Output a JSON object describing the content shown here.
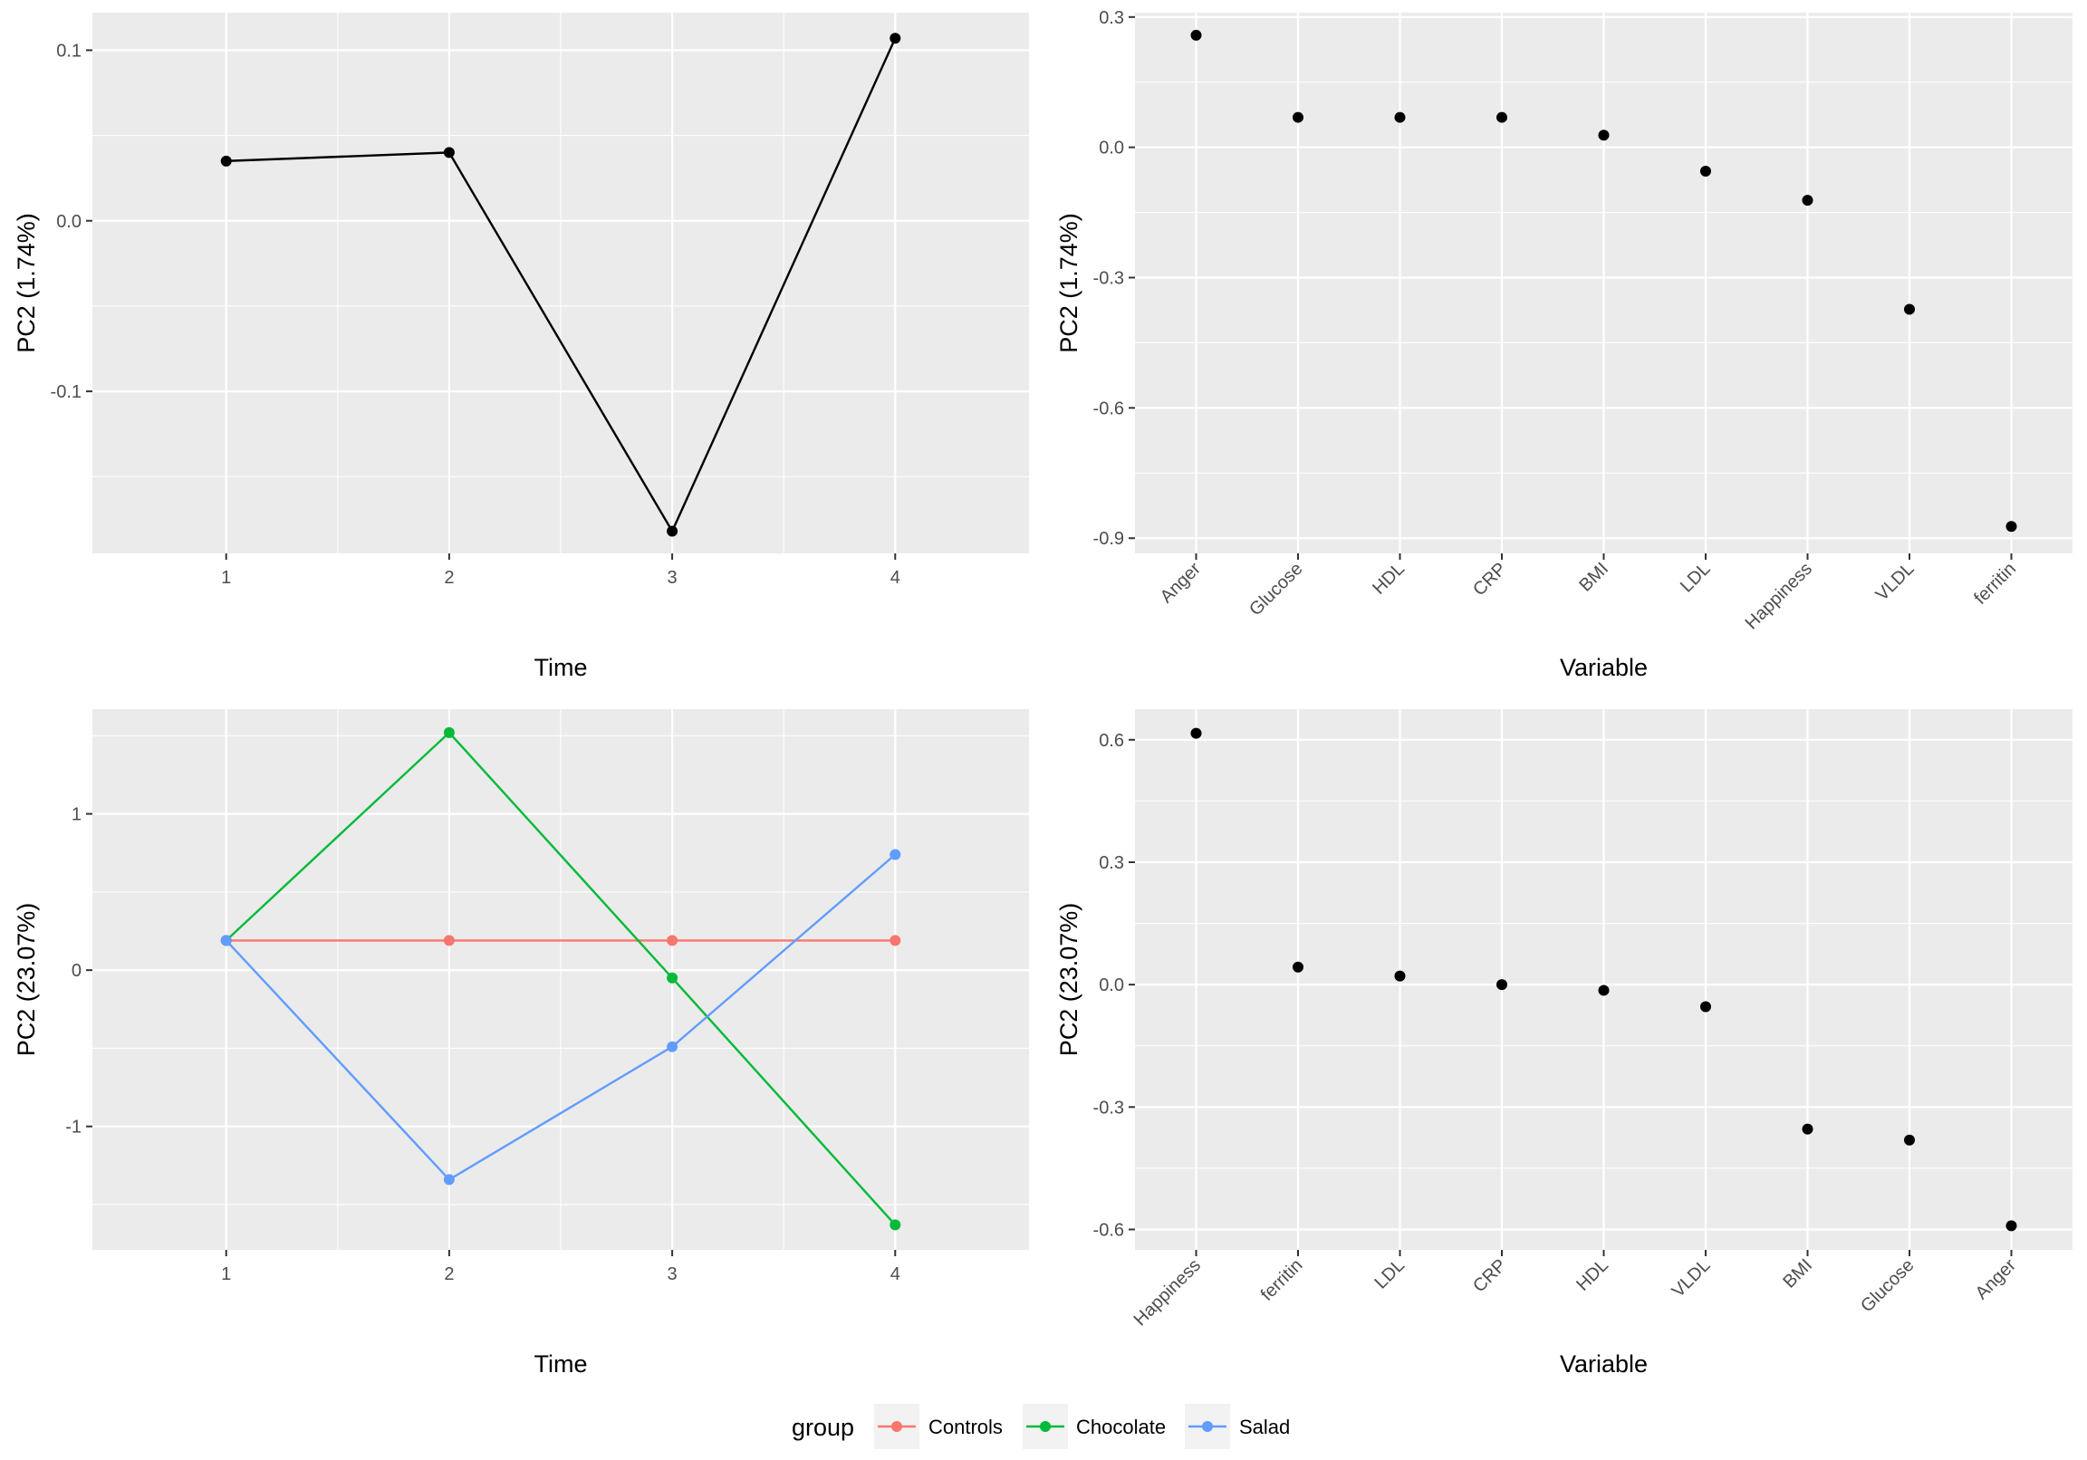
{
  "chart_data": [
    {
      "type": "line",
      "panel": "top-left",
      "title": "",
      "xlabel": "Time",
      "ylabel": "PC2 (1.74%)",
      "x": [
        1,
        2,
        3,
        4
      ],
      "xlim": [
        0.4,
        4.6
      ],
      "xticks": [
        1,
        2,
        3,
        4
      ],
      "ylim": [
        -0.195,
        0.122
      ],
      "yticks": [
        -0.1,
        0.0,
        0.1
      ],
      "ytick_labels": [
        "-0.1",
        "0.0",
        "0.1"
      ],
      "grid": true,
      "series": [
        {
          "values": [
            0.035,
            0.04,
            -0.182,
            0.107
          ],
          "color": "#000000"
        }
      ]
    },
    {
      "type": "scatter",
      "panel": "top-right",
      "title": "",
      "xlabel": "Variable",
      "ylabel": "PC2 (1.74%)",
      "categories": [
        "Anger",
        "Glucose",
        "HDL",
        "CRP",
        "BMI",
        "LDL",
        "Happiness",
        "VLDL",
        "ferritin"
      ],
      "values": [
        0.258,
        0.069,
        0.069,
        0.069,
        0.028,
        -0.055,
        -0.122,
        -0.373,
        -0.873
      ],
      "ylim": [
        -0.935,
        0.31
      ],
      "yticks": [
        -0.9,
        -0.6,
        -0.3,
        0.0,
        0.3
      ],
      "ytick_labels": [
        "-0.9",
        "-0.6",
        "-0.3",
        "0.0",
        "0.3"
      ],
      "grid": true,
      "color": "#000000"
    },
    {
      "type": "line",
      "panel": "bottom-left",
      "title": "",
      "xlabel": "Time",
      "ylabel": "PC2 (23.07%)",
      "x": [
        1,
        2,
        3,
        4
      ],
      "xlim": [
        0.4,
        4.6
      ],
      "xticks": [
        1,
        2,
        3,
        4
      ],
      "ylim": [
        -1.79,
        1.67
      ],
      "yticks": [
        -1,
        0,
        1
      ],
      "ytick_labels": [
        "-1",
        "0",
        "1"
      ],
      "grid": true,
      "legend": "bottom",
      "legend_title": "group",
      "series": [
        {
          "name": "Controls",
          "values": [
            0.19,
            0.19,
            0.19,
            0.19
          ],
          "color": "#F8766D"
        },
        {
          "name": "Chocolate",
          "values": [
            0.19,
            1.52,
            -0.05,
            -1.63
          ],
          "color": "#00BA38"
        },
        {
          "name": "Salad",
          "values": [
            0.19,
            -1.34,
            -0.49,
            0.74
          ],
          "color": "#619CFF"
        }
      ]
    },
    {
      "type": "scatter",
      "panel": "bottom-right",
      "title": "",
      "xlabel": "Variable",
      "ylabel": "PC2 (23.07%)",
      "categories": [
        "Happiness",
        "ferritin",
        "LDL",
        "CRP",
        "HDL",
        "VLDL",
        "BMI",
        "Glucose",
        "Anger"
      ],
      "values": [
        0.616,
        0.043,
        0.021,
        0.0,
        -0.014,
        -0.054,
        -0.354,
        -0.381,
        -0.591
      ],
      "ylim": [
        -0.65,
        0.675
      ],
      "yticks": [
        -0.6,
        -0.3,
        0.0,
        0.3,
        0.6
      ],
      "ytick_labels": [
        "-0.6",
        "-0.3",
        "0.0",
        "0.3",
        "0.6"
      ],
      "grid": true,
      "color": "#000000"
    }
  ]
}
